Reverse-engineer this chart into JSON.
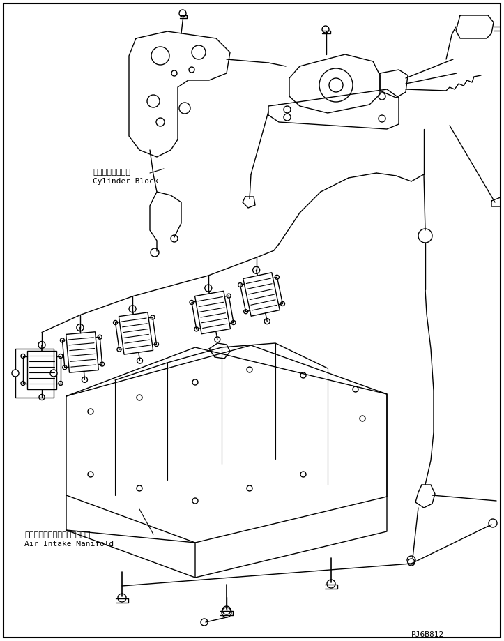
{
  "background_color": "#ffffff",
  "border_color": "#000000",
  "label1_jp": "シリンダブロック",
  "label1_en": "Cylinder Block",
  "label2_jp": "エアーインテイクマニホルード",
  "label2_en": "Air Intake Manifold",
  "part_number": "PJ6B812",
  "line_color": "#000000",
  "line_width": 1.0,
  "fig_width": 7.23,
  "fig_height": 9.19
}
